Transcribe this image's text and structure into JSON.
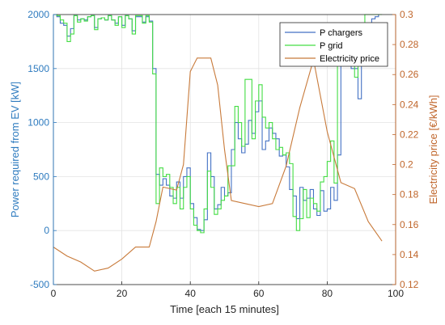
{
  "chart_data": {
    "type": "line",
    "xlabel": "Time [each 15 minutes]",
    "ylabel_left": "Power required from EV [kW]",
    "ylabel_right": "Electricity price [€/kWh]",
    "xlim": [
      0,
      100
    ],
    "ylim_left": [
      -500,
      2000
    ],
    "ylim_right": [
      0.12,
      0.3
    ],
    "x_ticks": [
      0,
      20,
      40,
      60,
      80,
      100
    ],
    "y_ticks_left": [
      -500,
      0,
      500,
      1000,
      1500,
      2000
    ],
    "y_ticks_right": [
      0.12,
      0.14,
      0.16,
      0.18,
      0.2,
      0.22,
      0.24,
      0.26,
      0.28,
      0.3
    ],
    "grid": true,
    "legend_position": "top-right",
    "colors": {
      "chargers": "#4472c4",
      "grid": "#44dd44",
      "price": "#c87a3a",
      "left_axis": "#2e7bbf",
      "right_axis": "#c0662b"
    },
    "series": [
      {
        "name": "P chargers",
        "axis": "left",
        "step": true,
        "x": [
          0,
          1,
          2,
          3,
          4,
          5,
          6,
          7,
          8,
          9,
          10,
          11,
          12,
          13,
          14,
          15,
          16,
          17,
          18,
          19,
          20,
          21,
          22,
          23,
          24,
          25,
          26,
          27,
          28,
          29,
          30,
          31,
          32,
          33,
          34,
          35,
          36,
          37,
          38,
          39,
          40,
          41,
          42,
          43,
          44,
          45,
          46,
          47,
          48,
          49,
          50,
          51,
          52,
          53,
          54,
          55,
          56,
          57,
          58,
          59,
          60,
          61,
          62,
          63,
          64,
          65,
          66,
          67,
          68,
          69,
          70,
          71,
          72,
          73,
          74,
          75,
          76,
          77,
          78,
          79,
          80,
          81,
          82,
          83,
          84,
          85,
          86,
          87,
          88,
          89,
          90,
          91,
          92,
          93,
          94,
          95
        ],
        "values": [
          2000,
          1980,
          1920,
          1900,
          1800,
          1870,
          1990,
          1950,
          1960,
          1950,
          1980,
          1990,
          1880,
          1960,
          1970,
          1950,
          1990,
          1950,
          1920,
          1980,
          1900,
          1990,
          1960,
          1850,
          1980,
          1980,
          1930,
          1980,
          1940,
          1500,
          520,
          420,
          480,
          420,
          320,
          300,
          450,
          300,
          500,
          580,
          250,
          120,
          10,
          0,
          100,
          720,
          500,
          200,
          240,
          400,
          320,
          350,
          750,
          1000,
          850,
          720,
          800,
          1020,
          900,
          1100,
          1200,
          750,
          830,
          950,
          900,
          850,
          690,
          700,
          590,
          380,
          320,
          110,
          400,
          280,
          300,
          380,
          200,
          140,
          370,
          180,
          200,
          400,
          280,
          700,
          1550,
          1720,
          1850,
          1500,
          1500,
          1220,
          1700,
          1650,
          1920,
          1960,
          1980,
          2000
        ],
        "end_x": 96
      },
      {
        "name": "P grid",
        "axis": "left",
        "step": true,
        "x": [
          0,
          1,
          2,
          3,
          4,
          5,
          6,
          7,
          8,
          9,
          10,
          11,
          12,
          13,
          14,
          15,
          16,
          17,
          18,
          19,
          20,
          21,
          22,
          23,
          24,
          25,
          26,
          27,
          28,
          29,
          30,
          31,
          32,
          33,
          34,
          35,
          36,
          37,
          38,
          39,
          40,
          41,
          42,
          43,
          44,
          45,
          46,
          47,
          48,
          49,
          50,
          51,
          52,
          53,
          54,
          55,
          56,
          57,
          58,
          59,
          60,
          61,
          62,
          63,
          64,
          65,
          66,
          67,
          68,
          69,
          70,
          71,
          72,
          73,
          74,
          75,
          76,
          77,
          78,
          79,
          80,
          81,
          82,
          83,
          84,
          85,
          86,
          87,
          88,
          89,
          90,
          91,
          92,
          93,
          94,
          95
        ],
        "values": [
          2000,
          1990,
          1950,
          1920,
          1750,
          1820,
          1990,
          1930,
          1960,
          1940,
          1980,
          1990,
          1860,
          1960,
          1970,
          1950,
          1990,
          1950,
          1900,
          1980,
          1880,
          1990,
          1960,
          1820,
          1990,
          1990,
          1920,
          1990,
          1930,
          1450,
          250,
          580,
          500,
          520,
          400,
          250,
          400,
          200,
          400,
          500,
          200,
          50,
          0,
          -20,
          200,
          550,
          400,
          150,
          200,
          280,
          320,
          600,
          600,
          1150,
          1000,
          780,
          1400,
          1400,
          850,
          1200,
          1350,
          1050,
          950,
          1000,
          850,
          750,
          770,
          700,
          720,
          620,
          130,
          0,
          110,
          380,
          120,
          300,
          250,
          180,
          450,
          500,
          640,
          830,
          440,
          1640,
          1640,
          1890,
          1720,
          1720,
          1420,
          1800,
          1800,
          2000,
          2000,
          2000,
          2000,
          2000
        ],
        "end_x": 96
      },
      {
        "name": "Electricity price",
        "axis": "right",
        "step": false,
        "x": [
          0,
          4,
          8,
          12,
          16,
          20,
          24,
          28,
          30,
          32,
          36,
          38,
          40,
          42,
          44,
          46,
          48,
          50,
          52,
          56,
          60,
          64,
          68,
          72,
          76,
          80,
          84,
          88,
          92,
          96
        ],
        "values": [
          0.145,
          0.139,
          0.135,
          0.129,
          0.131,
          0.137,
          0.145,
          0.145,
          0.162,
          0.185,
          0.183,
          0.2,
          0.262,
          0.271,
          0.271,
          0.271,
          0.253,
          0.21,
          0.176,
          0.174,
          0.172,
          0.174,
          0.199,
          0.238,
          0.27,
          0.222,
          0.188,
          0.184,
          0.162,
          0.149
        ]
      }
    ]
  }
}
